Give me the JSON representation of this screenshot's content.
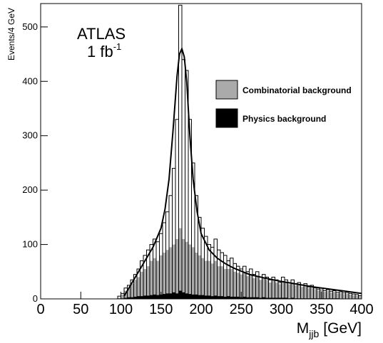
{
  "chart_data": {
    "type": "histogram",
    "ylabel": "Events/4 GeV",
    "xlabel": "M",
    "xlabel_sub": "jjb",
    "xlabel_unit": "[GeV]",
    "annotation": "ATLAS",
    "annotation2": "1 fb",
    "annotation2_sup": "-1",
    "bins": [
      0,
      4,
      8,
      12,
      16,
      20,
      24,
      28,
      32,
      36,
      40,
      44,
      48,
      52,
      56,
      60,
      64,
      68,
      72,
      76,
      80,
      84,
      88,
      92,
      96,
      100,
      104,
      108,
      112,
      116,
      120,
      124,
      128,
      132,
      136,
      140,
      144,
      148,
      152,
      156,
      160,
      164,
      168,
      172,
      176,
      180,
      184,
      188,
      192,
      196,
      200,
      204,
      208,
      212,
      216,
      220,
      224,
      228,
      232,
      236,
      240,
      244,
      248,
      252,
      256,
      260,
      264,
      268,
      272,
      276,
      280,
      284,
      288,
      292,
      296,
      300,
      304,
      308,
      312,
      316,
      320,
      324,
      328,
      332,
      336,
      340,
      344,
      348,
      352,
      356,
      360,
      364,
      368,
      372,
      376,
      380,
      384,
      388,
      392,
      396,
      400
    ],
    "total": {
      "color": "#000000",
      "values": [
        0,
        0,
        0,
        0,
        0,
        0,
        0,
        0,
        0,
        0,
        0,
        0,
        0,
        0,
        0,
        0,
        0,
        0,
        0,
        0,
        0,
        0,
        0,
        0,
        5,
        10,
        20,
        25,
        35,
        45,
        55,
        70,
        80,
        90,
        100,
        110,
        105,
        120,
        140,
        160,
        190,
        240,
        330,
        540,
        440,
        420,
        330,
        250,
        190,
        150,
        130,
        115,
        100,
        95,
        110,
        90,
        85,
        80,
        70,
        75,
        65,
        60,
        55,
        60,
        50,
        55,
        45,
        50,
        40,
        45,
        40,
        35,
        40,
        35,
        30,
        40,
        35,
        30,
        35,
        28,
        30,
        25,
        28,
        22,
        25,
        20,
        18,
        20,
        15,
        17,
        14,
        15,
        12,
        13,
        11,
        12,
        10,
        9,
        8,
        6
      ]
    },
    "series": [
      {
        "name": "Combinatorial background",
        "color": "#aaaaaa",
        "values": [
          0,
          0,
          0,
          0,
          0,
          0,
          0,
          0,
          0,
          0,
          0,
          0,
          0,
          0,
          0,
          0,
          0,
          0,
          0,
          0,
          0,
          0,
          0,
          0,
          2,
          8,
          15,
          20,
          28,
          35,
          40,
          50,
          55,
          60,
          70,
          75,
          70,
          80,
          85,
          90,
          95,
          100,
          110,
          130,
          110,
          105,
          100,
          95,
          85,
          80,
          75,
          70,
          70,
          65,
          70,
          60,
          60,
          55,
          55,
          55,
          50,
          48,
          45,
          48,
          42,
          45,
          38,
          42,
          35,
          38,
          35,
          30,
          35,
          30,
          27,
          33,
          30,
          27,
          30,
          25,
          26,
          22,
          25,
          20,
          22,
          18,
          16,
          18,
          13,
          15,
          12,
          13,
          10,
          11,
          9,
          10,
          8,
          7,
          6,
          5
        ]
      },
      {
        "name": "Physics background",
        "color": "#000000",
        "values": [
          0,
          0,
          0,
          0,
          0,
          0,
          0,
          0,
          0,
          0,
          0,
          0,
          0,
          0,
          0,
          0,
          0,
          0,
          0,
          0,
          0,
          0,
          0,
          0,
          0,
          1,
          2,
          3,
          3,
          4,
          5,
          5,
          6,
          6,
          7,
          8,
          7,
          8,
          9,
          10,
          10,
          12,
          10,
          15,
          12,
          10,
          9,
          8,
          8,
          7,
          7,
          6,
          6,
          5,
          6,
          5,
          5,
          4,
          5,
          4,
          4,
          4,
          3,
          4,
          3,
          3,
          3,
          3,
          2,
          3,
          2,
          2,
          2,
          2,
          2,
          2,
          2,
          1,
          2,
          1,
          1,
          1,
          1,
          1,
          1,
          1,
          1,
          1,
          1,
          1,
          1,
          1,
          1,
          0,
          0,
          0,
          0,
          0,
          0,
          0
        ]
      }
    ],
    "fit": {
      "color": "#000000",
      "x": [
        104,
        110,
        120,
        130,
        140,
        150,
        155,
        160,
        165,
        170,
        173,
        176,
        179,
        182,
        186,
        190,
        195,
        200,
        210,
        220,
        230,
        240,
        260,
        280,
        300,
        320,
        340,
        360,
        380,
        400
      ],
      "y": [
        5,
        20,
        45,
        70,
        95,
        130,
        165,
        220,
        310,
        410,
        450,
        460,
        445,
        400,
        300,
        220,
        160,
        120,
        90,
        75,
        65,
        57,
        45,
        38,
        32,
        27,
        22,
        18,
        14,
        10
      ]
    },
    "xlim": [
      0,
      400
    ],
    "xticks": [
      0,
      50,
      100,
      150,
      200,
      250,
      300,
      350,
      400
    ],
    "ylim": [
      0,
      543
    ],
    "yticks": [
      0,
      100,
      200,
      300,
      400,
      500
    ]
  }
}
